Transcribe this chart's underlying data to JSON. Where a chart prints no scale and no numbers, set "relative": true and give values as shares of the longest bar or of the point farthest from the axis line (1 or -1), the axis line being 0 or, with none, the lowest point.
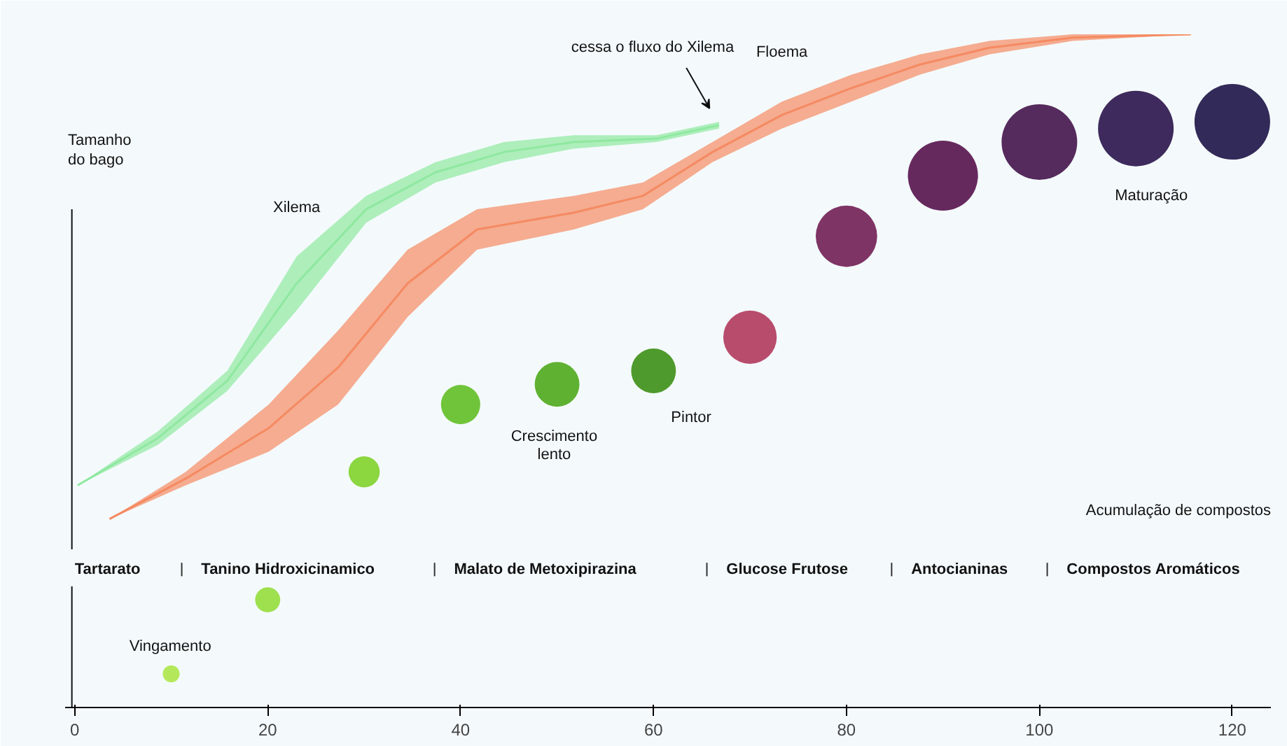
{
  "chart_data": {
    "type": "bubble",
    "relative": true,
    "ylabel": "Tamanho do bago",
    "xlabel": "Acumulação de compostos",
    "xlim": [
      -1,
      124
    ],
    "xticks": [
      0,
      20,
      40,
      60,
      80,
      100,
      120
    ],
    "grid": false,
    "series": [
      {
        "name": "Xilema",
        "type": "line",
        "color": "#8fe8a0",
        "x": [
          0.3,
          8.6,
          15.8,
          23,
          30.2,
          37.4,
          44.5,
          51.7,
          60.3,
          66.8
        ],
        "values": [
          0.33,
          0.4,
          0.485,
          0.63,
          0.74,
          0.795,
          0.825,
          0.84,
          0.845,
          0.865
        ],
        "upper": [
          0.33,
          0.41,
          0.5,
          0.67,
          0.76,
          0.81,
          0.84,
          0.85,
          0.85,
          0.87
        ],
        "lower": [
          0.33,
          0.39,
          0.47,
          0.59,
          0.72,
          0.78,
          0.81,
          0.83,
          0.84,
          0.86
        ]
      },
      {
        "name": "Floema",
        "type": "line",
        "color": "#f58a62",
        "x": [
          3.6,
          11.5,
          20.1,
          27.3,
          34.5,
          41.7,
          51.7,
          58.9,
          66.1,
          73.3,
          80.5,
          87.6,
          94.8,
          103.4,
          115.7
        ],
        "values": [
          0.28,
          0.34,
          0.415,
          0.505,
          0.63,
          0.71,
          0.735,
          0.76,
          0.825,
          0.88,
          0.92,
          0.955,
          0.98,
          0.995,
          1.0
        ],
        "upper": [
          0.28,
          0.35,
          0.45,
          0.56,
          0.68,
          0.74,
          0.76,
          0.78,
          0.84,
          0.9,
          0.94,
          0.97,
          0.99,
          1.0,
          1.0
        ],
        "lower": [
          0.28,
          0.33,
          0.38,
          0.45,
          0.58,
          0.68,
          0.71,
          0.74,
          0.81,
          0.86,
          0.9,
          0.94,
          0.97,
          0.99,
          1.0
        ]
      },
      {
        "x": [
          10,
          20,
          30,
          40,
          50,
          60,
          70,
          80,
          90,
          100,
          110,
          120
        ],
        "values": [
          0.05,
          0.16,
          0.35,
          0.45,
          0.48,
          0.5,
          0.55,
          0.7,
          0.79,
          0.84,
          0.86,
          0.87
        ],
        "sizes": [
          0.05,
          0.11,
          0.17,
          0.27,
          0.35,
          0.35,
          0.5,
          0.66,
          0.86,
          1,
          1,
          1
        ],
        "colors": [
          "#b4e85a",
          "#9ee04e",
          "#8cd640",
          "#70c43a",
          "#5fb132",
          "#4f9a2c",
          "#b84c6c",
          "#7e3464",
          "#66295e",
          "#552a5c",
          "#3e2a5c",
          "#322a58"
        ]
      }
    ],
    "annotations": [
      "cessa o fluxo do Xilema",
      "Vingamento",
      "Crescimento\nlento",
      "Pintor",
      "Maturação",
      "Tartarato",
      "Tanino Hidroxicinamico",
      "Malato de Metoxipirazina",
      "Glucose Frutose",
      "Antocianinas",
      "Compostos Aromáticos"
    ]
  }
}
